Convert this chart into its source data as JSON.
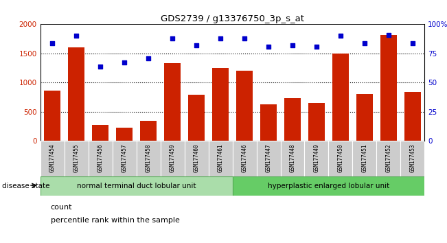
{
  "title": "GDS2739 / g13376750_3p_s_at",
  "samples": [
    "GSM177454",
    "GSM177455",
    "GSM177456",
    "GSM177457",
    "GSM177458",
    "GSM177459",
    "GSM177460",
    "GSM177461",
    "GSM177446",
    "GSM177447",
    "GSM177448",
    "GSM177449",
    "GSM177450",
    "GSM177451",
    "GSM177452",
    "GSM177453"
  ],
  "counts": [
    860,
    1610,
    270,
    230,
    340,
    1330,
    790,
    1250,
    1200,
    630,
    730,
    650,
    1500,
    800,
    1820,
    840
  ],
  "percentiles": [
    84,
    90,
    64,
    67,
    71,
    88,
    82,
    88,
    88,
    81,
    82,
    81,
    90,
    84,
    91,
    84
  ],
  "ylim_left": [
    0,
    2000
  ],
  "ylim_right": [
    0,
    100
  ],
  "yticks_left": [
    0,
    500,
    1000,
    1500,
    2000
  ],
  "yticks_right": [
    0,
    25,
    50,
    75,
    100
  ],
  "ytick_labels_right": [
    "0",
    "25",
    "50",
    "75",
    "100%"
  ],
  "group1_label": "normal terminal duct lobular unit",
  "group2_label": "hyperplastic enlarged lobular unit",
  "group1_count": 8,
  "group2_count": 8,
  "bar_color": "#cc2200",
  "dot_color": "#0000cc",
  "group1_bg": "#aaddaa",
  "group2_bg": "#66cc66",
  "tick_bg": "#cccccc",
  "disease_state_label": "disease state",
  "count_label": "count",
  "percentile_label": "percentile rank within the sample",
  "legend_count_color": "#cc2200",
  "legend_dot_color": "#0000cc"
}
